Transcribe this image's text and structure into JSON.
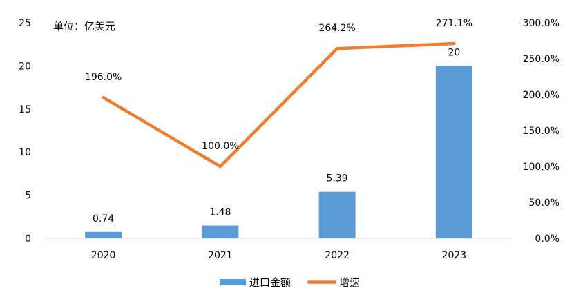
{
  "chart_data": {
    "type": "bar",
    "unit_label": "单位：亿美元",
    "categories": [
      "2020",
      "2021",
      "2022",
      "2023"
    ],
    "series": [
      {
        "name": "进口金额",
        "type": "bar",
        "axis": "left",
        "color": "#5B9BD5",
        "values": [
          0.74,
          1.48,
          5.39,
          20
        ],
        "labels": [
          "0.74",
          "1.48",
          "5.39",
          "20"
        ]
      },
      {
        "name": "增速",
        "type": "line",
        "axis": "right",
        "color": "#ED7D31",
        "values": [
          196.0,
          100.0,
          264.2,
          271.1
        ],
        "labels": [
          "196.0%",
          "100.0%",
          "264.2%",
          "271.1%"
        ]
      }
    ],
    "y_left": {
      "min": 0,
      "max": 25,
      "ticks": [
        "0",
        "5",
        "10",
        "15",
        "20",
        "25"
      ]
    },
    "y_right": {
      "min": 0,
      "max": 300,
      "ticks": [
        "0.0%",
        "50.0%",
        "100.0%",
        "150.0%",
        "200.0%",
        "250.0%",
        "300.0%"
      ]
    },
    "grid": false,
    "legend_position": "bottom"
  }
}
